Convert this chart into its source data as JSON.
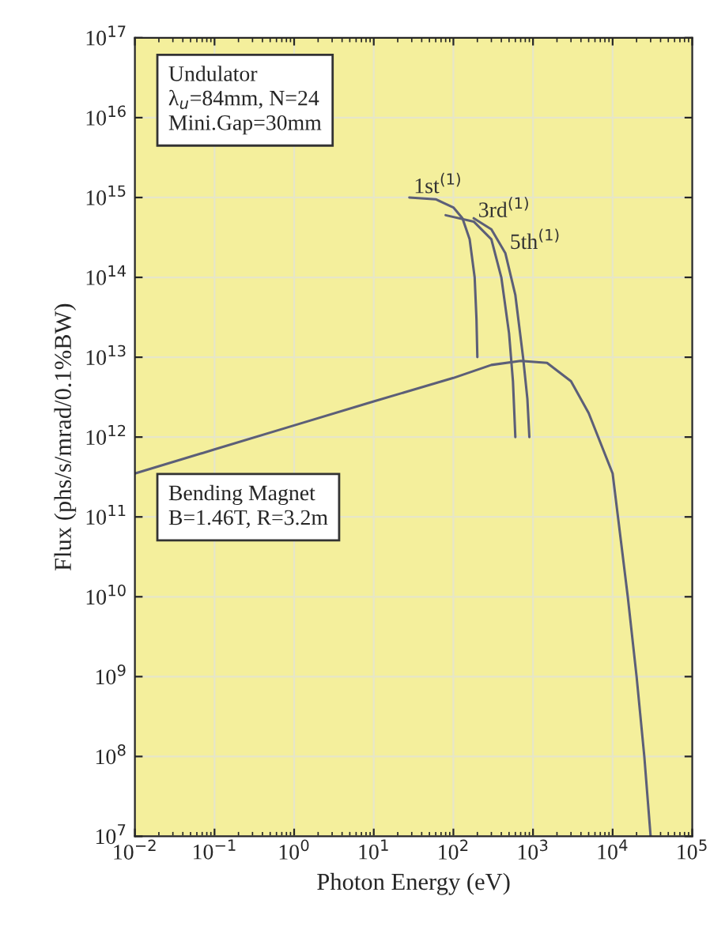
{
  "chart_data": {
    "type": "line",
    "xlabel": "Photon Energy (eV)",
    "ylabel": "Flux (phs/s/mrad/0.1%BW)",
    "log": "xy",
    "grid": true,
    "xlim": [
      0.01,
      100000
    ],
    "ylim": [
      10000000.0,
      1e+17
    ],
    "xticks": [
      {
        "value": 0.01,
        "label": "10$^{−2}$"
      },
      {
        "value": 0.1,
        "label": "10$^{−1}$"
      },
      {
        "value": 1,
        "label": "10$^{0}$"
      },
      {
        "value": 10,
        "label": "10$^{1}$"
      },
      {
        "value": 100,
        "label": "10$^{2}$"
      },
      {
        "value": 1000,
        "label": "10$^{3}$"
      },
      {
        "value": 10000,
        "label": "10$^{4}$"
      },
      {
        "value": 100000,
        "label": "10$^{5}$"
      }
    ],
    "yticks": [
      {
        "value": 10000000.0,
        "label": "10$^{7}$"
      },
      {
        "value": 100000000.0,
        "label": "10$^{8}$"
      },
      {
        "value": 1000000000.0,
        "label": "10$^{9}$"
      },
      {
        "value": 10000000000.0,
        "label": "10$^{10}$"
      },
      {
        "value": 100000000000.0,
        "label": "10$^{11}$"
      },
      {
        "value": 1000000000000.0,
        "label": "10$^{12}$"
      },
      {
        "value": 10000000000000.0,
        "label": "10$^{13}$"
      },
      {
        "value": 100000000000000.0,
        "label": "10$^{14}$"
      },
      {
        "value": 1000000000000000.0,
        "label": "10$^{15}$"
      },
      {
        "value": 1e+16,
        "label": "10$^{16}$"
      },
      {
        "value": 1e+17,
        "label": "10$^{17}$"
      }
    ],
    "series": [
      {
        "color": "#5c5f78",
        "x": [
          0.01,
          0.1,
          1,
          10,
          100,
          300,
          700,
          1500,
          3000,
          5000,
          10000,
          15500,
          20000,
          25000,
          30000
        ],
        "values": [
          350000000000.0,
          700000000000.0,
          1400000000000.0,
          2800000000000.0,
          5500000000000.0,
          8000000000000.0,
          9000000000000.0,
          8500000000000.0,
          5000000000000.0,
          2000000000000.0,
          350000000000.0,
          10000000000.0,
          1000000000.0,
          100000000.0,
          10000000.0
        ]
      },
      {
        "color": "#5c5f78",
        "x": [
          28,
          60,
          100,
          130,
          160,
          185,
          195,
          200
        ],
        "values": [
          1000000000000000.0,
          950000000000000.0,
          750000000000000.0,
          550000000000000.0,
          300000000000000.0,
          100000000000000.0,
          30000000000000.0,
          10000000000000.0
        ]
      },
      {
        "color": "#5c5f78",
        "x": [
          80,
          180,
          300,
          400,
          500,
          560,
          600
        ],
        "values": [
          600000000000000.0,
          500000000000000.0,
          300000000000000.0,
          100000000000000.0,
          20000000000000.0,
          5000000000000.0,
          1000000000000.0
        ]
      },
      {
        "color": "#5c5f78",
        "x": [
          180,
          300,
          450,
          600,
          750,
          850,
          900
        ],
        "values": [
          550000000000000.0,
          400000000000000.0,
          200000000000000.0,
          60000000000000.0,
          10000000000000.0,
          3000000000000.0,
          1000000000000.0
        ]
      }
    ],
    "annotations": [
      "Undulator\nλ$_{u}$=84mm, N=24\nMini.Gap=30mm",
      "Bending Magnet\nB=1.46T, R=3.2m",
      {
        "text": "1st$^{(1)}$",
        "x": 28,
        "y": 1000000000000000.0
      },
      {
        "text": "3rd$^{(1)}$",
        "x": 180,
        "y": 500000000000000.0
      },
      {
        "text": "5th$^{(1)}$",
        "x": 450,
        "y": 200000000000000.0
      }
    ]
  }
}
